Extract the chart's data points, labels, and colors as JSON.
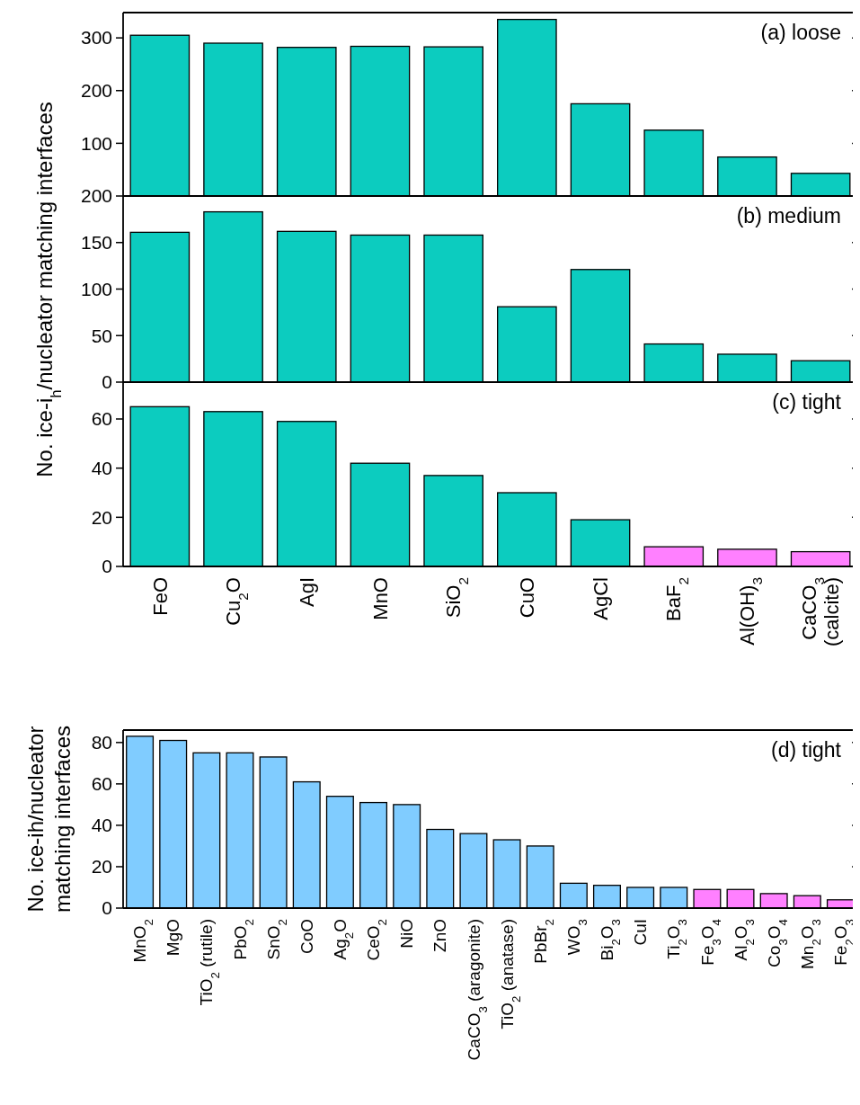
{
  "chart_data": [
    {
      "type": "bar",
      "title": "(a) loose",
      "categories": [
        "FeO",
        "Cu$_{2}$O",
        "AgI",
        "MnO",
        "SiO$_{2}$",
        "CuO",
        "AgCl",
        "BaF$_{2}$",
        "Al(OH)$_{3}$",
        "CaCO$_{3}$\n(calcite)"
      ],
      "values": [
        305,
        290,
        282,
        284,
        283,
        335,
        175,
        125,
        74,
        43
      ],
      "colors": [
        "#0cccbf",
        "#0cccbf",
        "#0cccbf",
        "#0cccbf",
        "#0cccbf",
        "#0cccbf",
        "#0cccbf",
        "#0cccbf",
        "#0cccbf",
        "#0cccbf"
      ],
      "ylim": [
        0,
        348
      ],
      "yticks": [
        100,
        200,
        300
      ],
      "tick_labels": "y",
      "grid": false
    },
    {
      "type": "bar",
      "title": "(b) medium",
      "ylabel": "No. ice-i$_{h}$/nucleator matching interfaces",
      "categories": [
        "FeO",
        "Cu$_{2}$O",
        "AgI",
        "MnO",
        "SiO$_{2}$",
        "CuO",
        "AgCl",
        "BaF$_{2}$",
        "Al(OH)$_{3}$",
        "CaCO$_{3}$\n(calcite)"
      ],
      "values": [
        161,
        183,
        162,
        158,
        158,
        81,
        121,
        41,
        30,
        23
      ],
      "colors": [
        "#0cccbf",
        "#0cccbf",
        "#0cccbf",
        "#0cccbf",
        "#0cccbf",
        "#0cccbf",
        "#0cccbf",
        "#0cccbf",
        "#0cccbf",
        "#0cccbf"
      ],
      "ylim": [
        0,
        200
      ],
      "yticks": [
        0,
        50,
        100,
        150,
        200
      ],
      "tick_labels": "y",
      "grid": false
    },
    {
      "type": "bar",
      "title": "(c) tight",
      "categories": [
        "FeO",
        "Cu$_{2}$O",
        "AgI",
        "MnO",
        "SiO$_{2}$",
        "CuO",
        "AgCl",
        "BaF$_{2}$",
        "Al(OH)$_{3}$",
        "CaCO$_{3}$\n(calcite)"
      ],
      "values": [
        65,
        63,
        59,
        42,
        37,
        30,
        19,
        8,
        7,
        6
      ],
      "colors": [
        "#0cccbf",
        "#0cccbf",
        "#0cccbf",
        "#0cccbf",
        "#0cccbf",
        "#0cccbf",
        "#0cccbf",
        "#ff80ff",
        "#ff80ff",
        "#ff80ff"
      ],
      "ylim": [
        0,
        75
      ],
      "yticks": [
        0,
        20,
        40,
        60
      ],
      "grid": false
    },
    {
      "type": "bar",
      "title": "(d) tight",
      "ylabel": "No. ice-ih/nucleator matching interfaces",
      "categories": [
        "MnO$_{2}$",
        "MgO",
        "TiO$_{2}$ (rutile)",
        "PbO$_{2}$",
        "SnO$_{2}$",
        "CoO",
        "Ag$_{2}$O",
        "CeO$_{2}$",
        "NiO",
        "ZnO",
        "CaCO$_{3}$ (aragonite)",
        "TiO$_{2}$ (anatase)",
        "PbBr$_{2}$",
        "WO$_{3}$",
        "Bi$_{2}$O$_{3}$",
        "CuI",
        "Ti$_{2}$O$_{3}$",
        "Fe$_{3}$O$_{4}$",
        "Al$_{2}$O$_{3}$",
        "Co$_{3}$O$_{4}$",
        "Mn$_{2}$O$_{3}$",
        "Fe$_{2}$O$_{3}$"
      ],
      "values": [
        83,
        81,
        75,
        75,
        73,
        61,
        54,
        51,
        50,
        38,
        36,
        33,
        30,
        12,
        11,
        10,
        10,
        9,
        9,
        7,
        6,
        4
      ],
      "colors": [
        "#80ccff",
        "#80ccff",
        "#80ccff",
        "#80ccff",
        "#80ccff",
        "#80ccff",
        "#80ccff",
        "#80ccff",
        "#80ccff",
        "#80ccff",
        "#80ccff",
        "#80ccff",
        "#80ccff",
        "#80ccff",
        "#80ccff",
        "#80ccff",
        "#80ccff",
        "#ff80ff",
        "#ff80ff",
        "#ff80ff",
        "#ff80ff",
        "#ff80ff"
      ],
      "ylim": [
        0,
        86
      ],
      "yticks": [
        0,
        20,
        40,
        60,
        80
      ],
      "grid": false
    }
  ]
}
